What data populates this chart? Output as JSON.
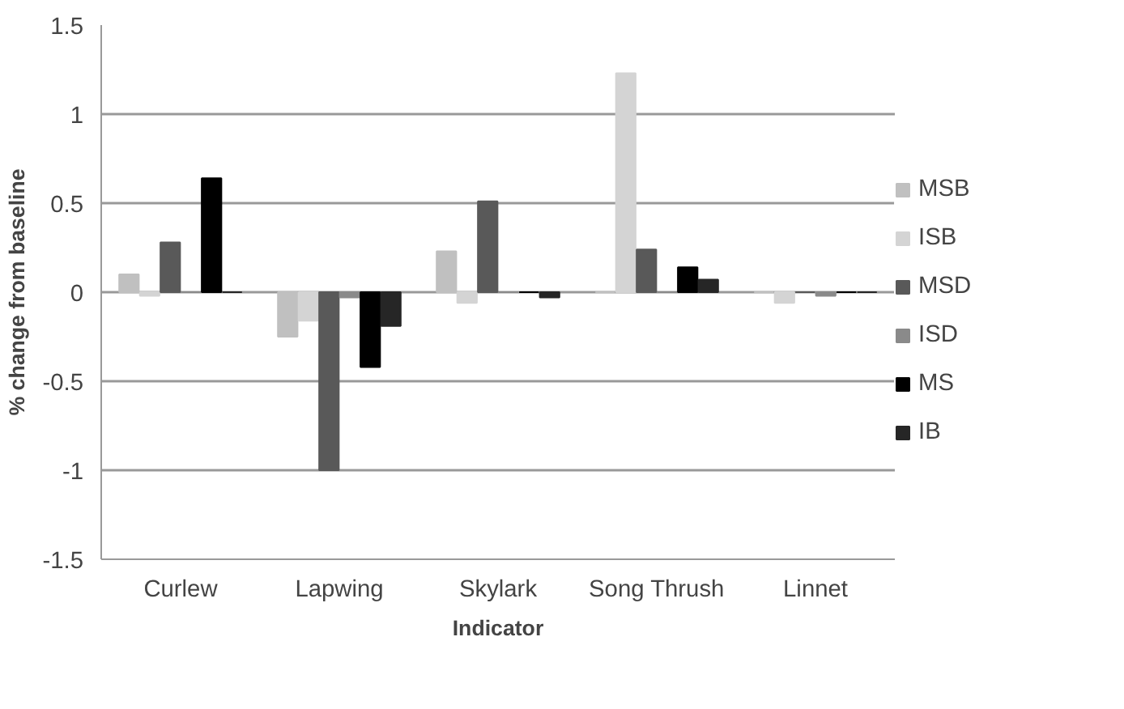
{
  "chart_data": {
    "type": "bar",
    "xlabel": "Indicator",
    "ylabel": "% change from baseline",
    "categories": [
      "Curlew",
      "Lapwing",
      "Skylark",
      "Song Thrush",
      "Linnet"
    ],
    "series": [
      {
        "name": "MSB",
        "color": "#c0c0c0",
        "values": [
          0.1,
          -0.25,
          0.23,
          0,
          0
        ]
      },
      {
        "name": "ISB",
        "color": "#d4d4d4",
        "values": [
          -0.02,
          -0.16,
          -0.06,
          1.23,
          -0.06
        ]
      },
      {
        "name": "MSD",
        "color": "#595959",
        "values": [
          0.28,
          -1.0,
          0.51,
          0.24,
          0
        ]
      },
      {
        "name": "ISD",
        "color": "#8a8a8a",
        "values": [
          0,
          -0.03,
          0,
          0,
          -0.02
        ]
      },
      {
        "name": "MS",
        "color": "#000000",
        "values": [
          0.64,
          -0.42,
          0,
          0.14,
          0
        ]
      },
      {
        "name": "IB",
        "color": "#262626",
        "values": [
          0,
          -0.19,
          -0.03,
          0.07,
          0
        ]
      }
    ],
    "ylim": [
      -1.5,
      1.5
    ],
    "yticks": [
      -1.5,
      -1,
      -0.5,
      0,
      0.5,
      1,
      1.5
    ],
    "grid": "y",
    "legend": "right"
  }
}
